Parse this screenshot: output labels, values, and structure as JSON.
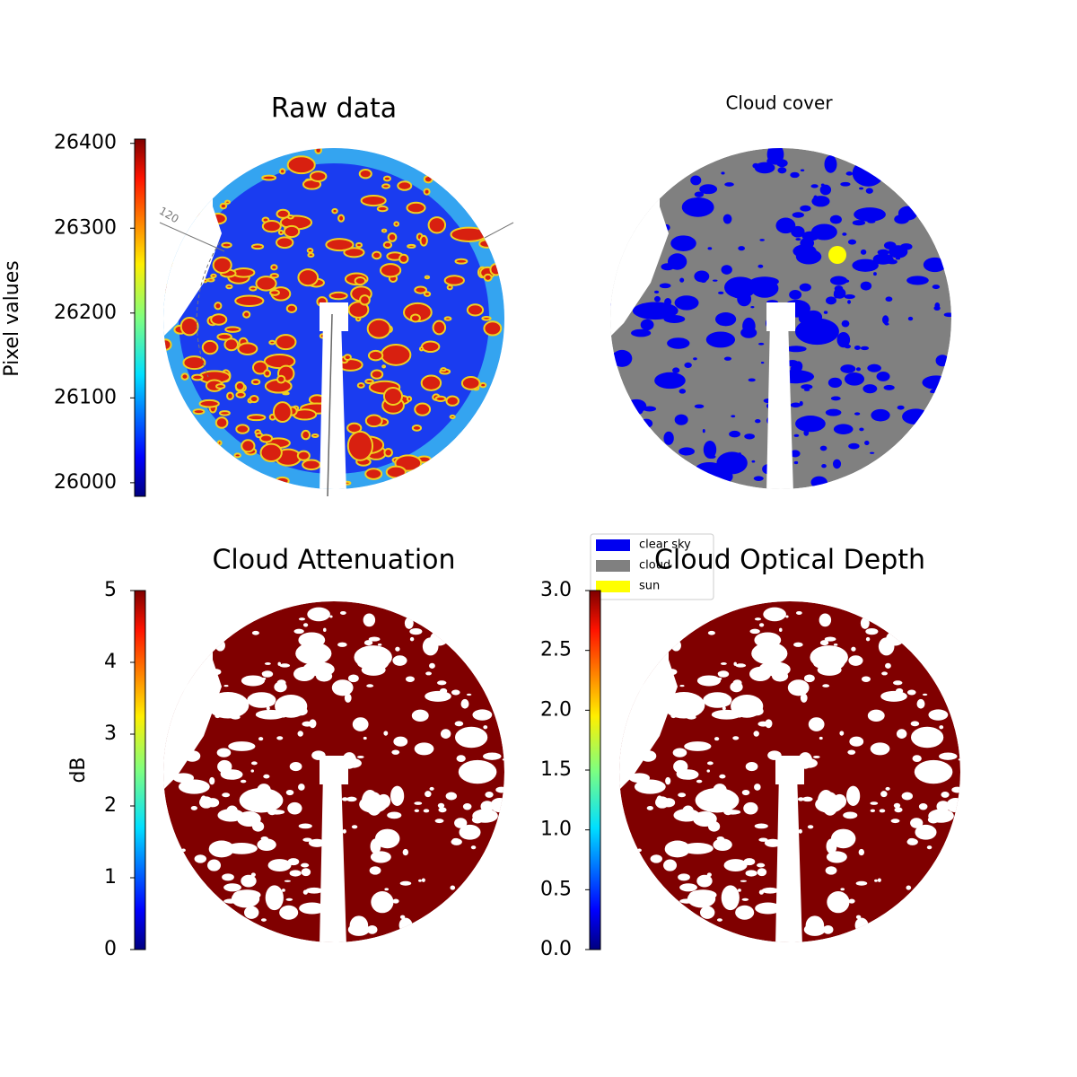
{
  "chart_data": [
    {
      "type": "image",
      "title": "Raw data",
      "colorbar_label": "Pixel values",
      "colormap": "jet",
      "clim": [
        25984,
        26405
      ],
      "cticks": [
        26000,
        26100,
        26200,
        26300,
        26400
      ],
      "annotation": "120"
    },
    {
      "type": "image",
      "title": "Cloud cover",
      "legend": [
        {
          "name": "clear sky",
          "color": "#0000f0"
        },
        {
          "name": "cloud",
          "color": "#808080"
        },
        {
          "name": "sun",
          "color": "#ffff00"
        }
      ]
    },
    {
      "type": "image",
      "title": "Cloud Attenuation",
      "colorbar_label": "dB",
      "colormap": "jet",
      "clim": [
        0,
        5
      ],
      "cticks": [
        0,
        1,
        2,
        3,
        4,
        5
      ]
    },
    {
      "type": "image",
      "title": "Cloud Optical Depth",
      "colormap": "jet",
      "clim": [
        0,
        3
      ],
      "cticks": [
        {
          "value": 0,
          "label": "0.0"
        },
        {
          "value": 0.5,
          "label": "0.5"
        },
        {
          "value": 1,
          "label": "1.0"
        },
        {
          "value": 1.5,
          "label": "1.5"
        },
        {
          "value": 2,
          "label": "2.0"
        },
        {
          "value": 2.5,
          "label": "2.5"
        },
        {
          "value": 3,
          "label": "3.0"
        }
      ]
    }
  ]
}
